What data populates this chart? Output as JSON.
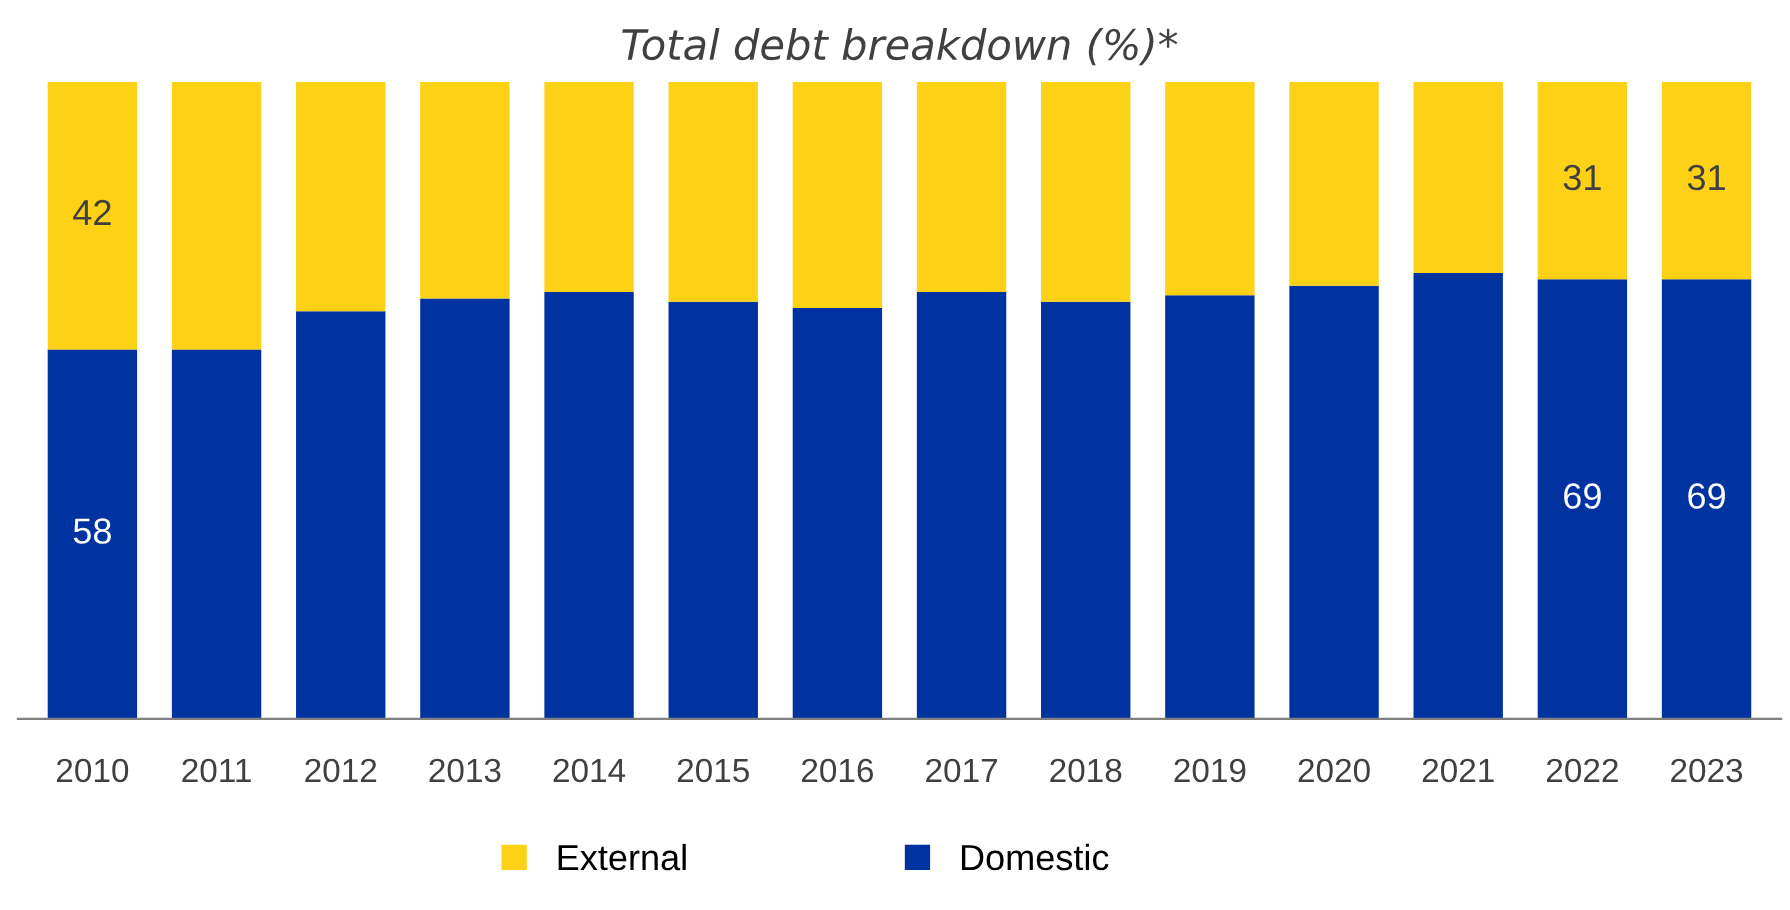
{
  "chart_data": {
    "type": "bar",
    "title": "Total debt breakdown (%)*",
    "stacked": true,
    "categories": [
      "2010",
      "2011",
      "2012",
      "2013",
      "2014",
      "2015",
      "2016",
      "2017",
      "2018",
      "2019",
      "2020",
      "2021",
      "2022",
      "2023"
    ],
    "series": [
      {
        "name": "Domestic",
        "color": "#0033a0",
        "values": [
          58,
          58,
          64,
          66,
          67,
          65.5,
          64.5,
          67,
          65.5,
          66.5,
          68,
          70,
          69,
          69
        ],
        "value_labels": [
          "58",
          null,
          null,
          null,
          null,
          null,
          null,
          null,
          null,
          null,
          null,
          null,
          "69",
          "69"
        ]
      },
      {
        "name": "External",
        "color": "#fdd116",
        "values": [
          42,
          42,
          36,
          34,
          33,
          34.5,
          35.5,
          33,
          34.5,
          33.5,
          32,
          30,
          31,
          31
        ],
        "value_labels": [
          "42",
          null,
          null,
          null,
          null,
          null,
          null,
          null,
          null,
          null,
          null,
          null,
          "31",
          "31"
        ]
      }
    ],
    "ylim": [
      0,
      100
    ],
    "tick_labels": "x",
    "legend": "bottom",
    "grid": false
  }
}
